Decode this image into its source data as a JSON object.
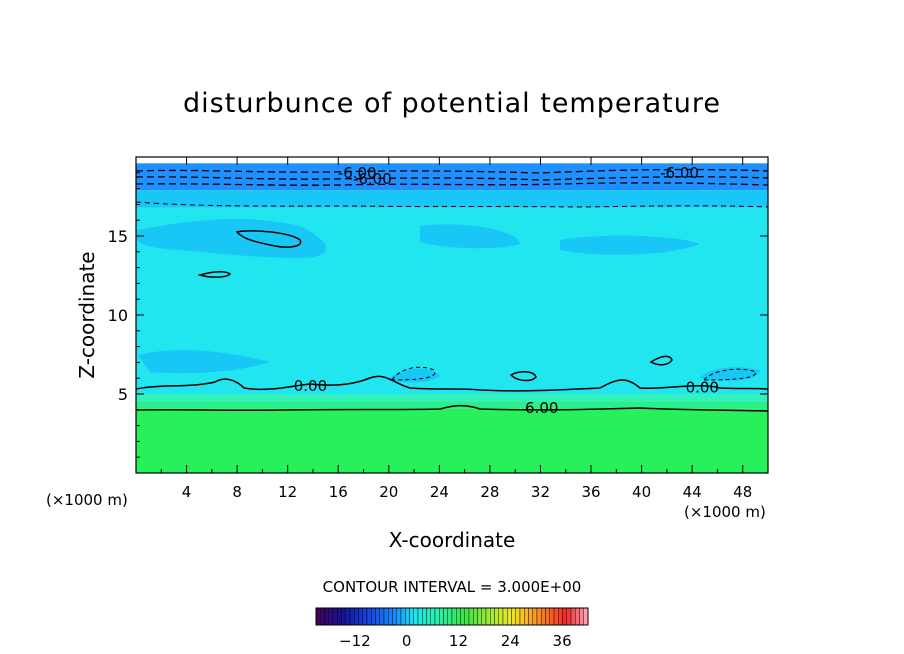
{
  "chart_data": {
    "type": "heatmap",
    "title": "disturbunce of potential temperature",
    "xlabel": "X-coordinate",
    "ylabel": "Z-coordinate",
    "x_unit_left": "(×1000 m)",
    "x_unit_right": "(×1000 m)",
    "xlim": [
      0,
      50
    ],
    "ylim": [
      0,
      20
    ],
    "x_ticks": [
      4,
      8,
      12,
      16,
      20,
      24,
      28,
      32,
      36,
      40,
      44,
      48
    ],
    "y_ticks": [
      5,
      10,
      15
    ],
    "contour_interval_text": "CONTOUR INTERVAL = 3.000E+00",
    "colorbar": {
      "min": -21,
      "max": 42,
      "ticks": [
        -12,
        0,
        12,
        24,
        36
      ]
    },
    "contour_labels": [
      {
        "text": "0.00",
        "x": 13.8,
        "z": 5.5
      },
      {
        "text": "0.00",
        "x": 44.8,
        "z": 5.4
      },
      {
        "text": "6.00",
        "x": 32.1,
        "z": 4.1
      },
      {
        "text": "-6.00",
        "x": 17.5,
        "z": 19.0
      },
      {
        "text": "-6.00",
        "x": 18.7,
        "z": 18.6
      },
      {
        "text": "-6.00",
        "x": 43.0,
        "z": 19.0
      }
    ],
    "layers": [
      {
        "z": [
          0,
          4.1
        ],
        "value": 7.5,
        "color": "#27f05a"
      },
      {
        "z": [
          4.1,
          4.55
        ],
        "value": 4.5,
        "color": "#2bf08a"
      },
      {
        "z": [
          4.55,
          5.0
        ],
        "value": 1.5,
        "color": "#34f2bd"
      },
      {
        "z": [
          5.0,
          16.8
        ],
        "value": -1.5,
        "color": "#21e6f0"
      },
      {
        "z": [
          16.8,
          17.9
        ],
        "value": -4.5,
        "color": "#18c7f5"
      },
      {
        "z": [
          17.9,
          19.6
        ],
        "value": -7.5,
        "color": "#1e90ff"
      }
    ]
  }
}
